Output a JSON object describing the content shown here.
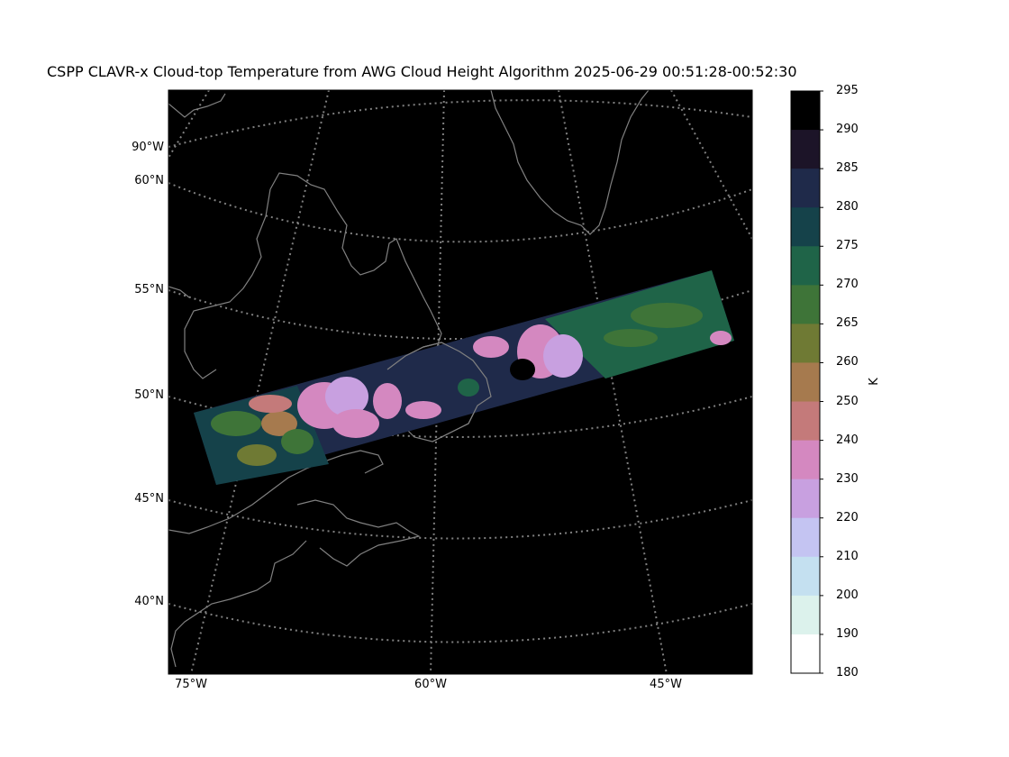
{
  "title": "CSPP CLAVR-x Cloud-top Temperature from AWG Cloud Height Algorithm 2025-06-29 00:51:28-00:52:30",
  "lat_labels": [
    "90°W",
    "60°N",
    "55°N",
    "50°N",
    "45°N",
    "40°N"
  ],
  "lon_labels": [
    "75°W",
    "60°W",
    "45°W"
  ],
  "colorbar": {
    "unit": "K",
    "ticks": [
      "295",
      "290",
      "285",
      "280",
      "275",
      "270",
      "265",
      "260",
      "250",
      "240",
      "230",
      "220",
      "210",
      "200",
      "190",
      "180"
    ],
    "colors": [
      "#000000",
      "#1c1428",
      "#1f2a4a",
      "#15424a",
      "#1f6448",
      "#3e7438",
      "#6f7a34",
      "#a67a4e",
      "#c47a7a",
      "#d488c0",
      "#c8a0e0",
      "#c4c4f2",
      "#c4e0f0",
      "#dcf2ec",
      "#ffffff"
    ]
  },
  "colors": {
    "map_background": "#000000",
    "coastline": "#808080",
    "graticule": "#808080"
  }
}
